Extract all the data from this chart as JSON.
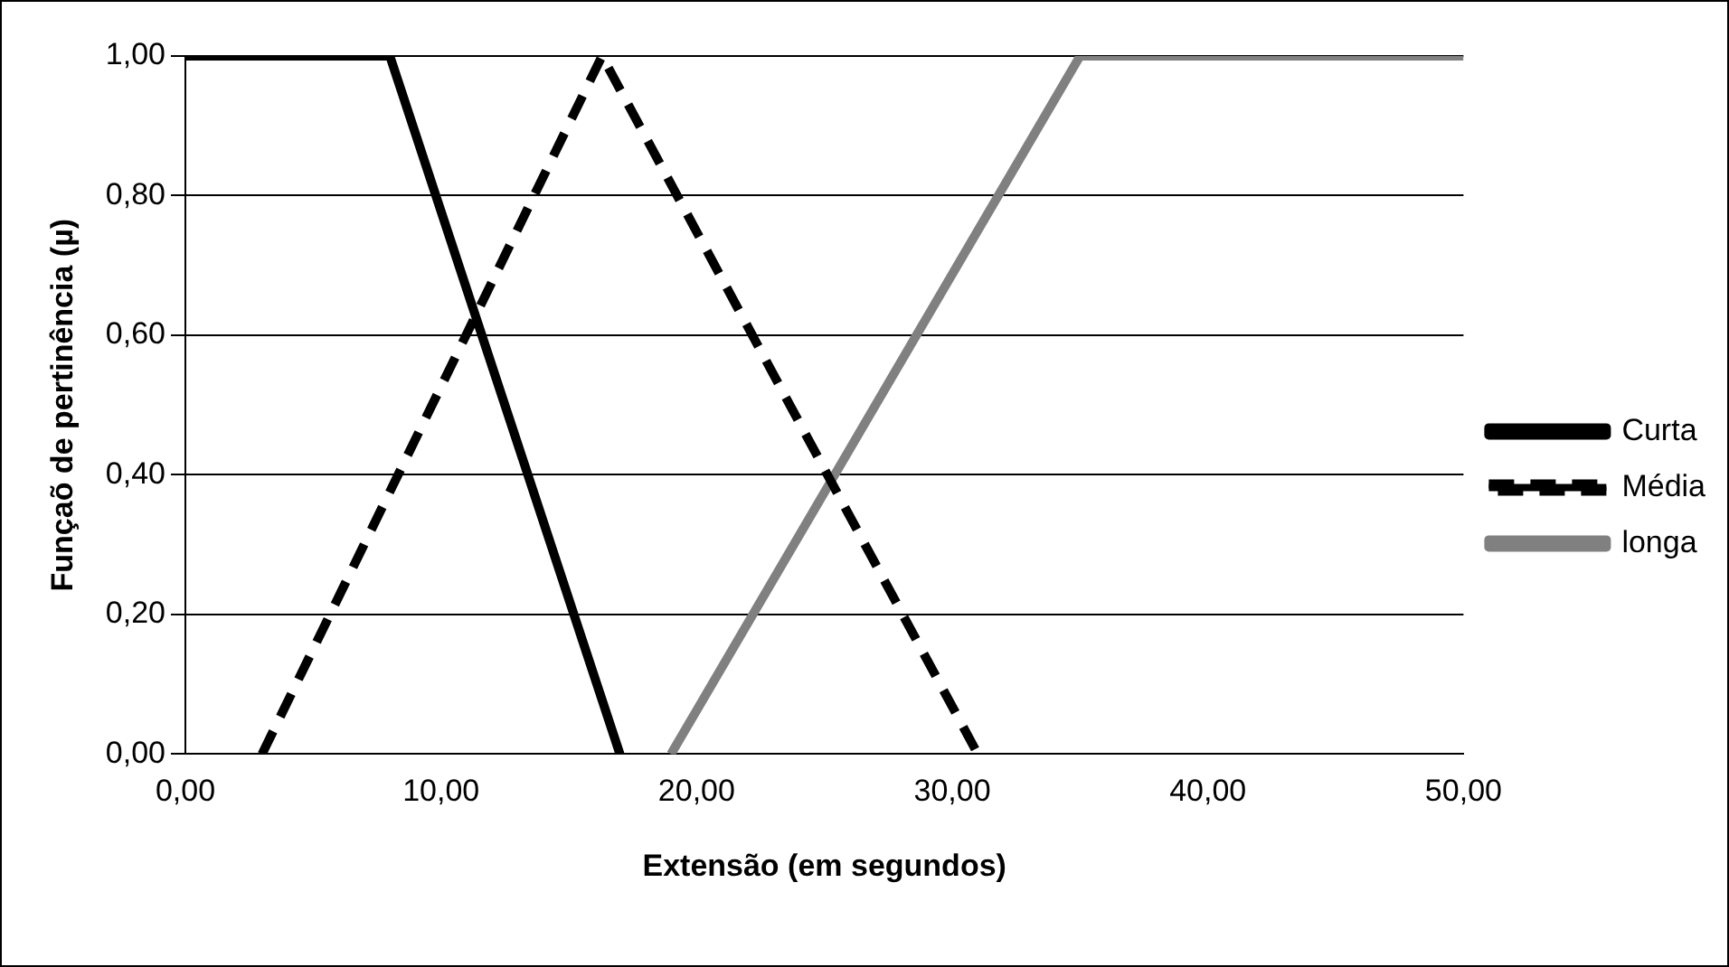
{
  "chart_data": {
    "type": "line",
    "xlabel": "Extensão (em segundos)",
    "ylabel": "Funçaõ de pertinência (µ)",
    "xlim": [
      0,
      50
    ],
    "xticks": [
      {
        "value": 0,
        "label": "0,00"
      },
      {
        "value": 10,
        "label": "10,00"
      },
      {
        "value": 20,
        "label": "20,00"
      },
      {
        "value": 30,
        "label": "30,00"
      },
      {
        "value": 40,
        "label": "40,00"
      },
      {
        "value": 50,
        "label": "50,00"
      }
    ],
    "ylim": [
      0,
      1
    ],
    "yticks": [
      {
        "value": 0,
        "label": "0,00"
      },
      {
        "value": 0.2,
        "label": "0,20"
      },
      {
        "value": 0.4,
        "label": "0,40"
      },
      {
        "value": 0.6,
        "label": "0,60"
      },
      {
        "value": 0.8,
        "label": "0,80"
      },
      {
        "value": 1,
        "label": "1,00"
      }
    ],
    "grid": "y",
    "legend": "right",
    "marker": "none",
    "series": [
      {
        "name": "Curta",
        "color": "#000000",
        "line_style": "solid",
        "x": [
          0,
          8,
          17
        ],
        "values": [
          1,
          1,
          0
        ]
      },
      {
        "name": "Média",
        "color": "#000000",
        "line_style": "dashed",
        "x": [
          3,
          16.3,
          31
        ],
        "values": [
          0,
          1,
          0
        ]
      },
      {
        "name": "longa",
        "color": "#808080",
        "line_style": "solid",
        "x": [
          19,
          35,
          50
        ],
        "values": [
          0,
          1,
          1
        ]
      }
    ]
  }
}
